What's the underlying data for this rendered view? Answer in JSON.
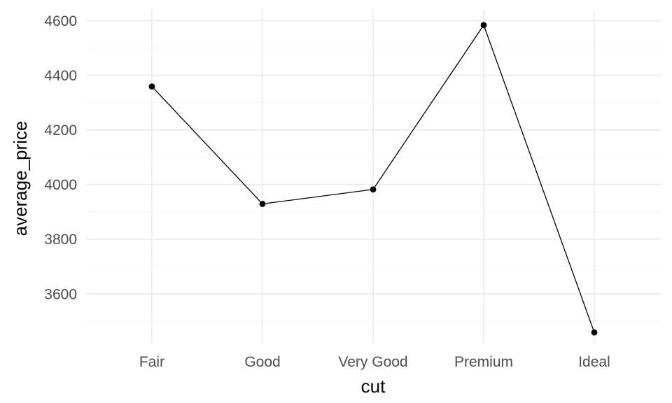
{
  "chart_data": {
    "type": "line",
    "categories": [
      "Fair",
      "Good",
      "Very Good",
      "Premium",
      "Ideal"
    ],
    "values": [
      4359,
      3929,
      3982,
      4584,
      3458
    ],
    "xlabel": "cut",
    "ylabel": "average_price",
    "ylim": [
      3420,
      4640
    ],
    "yticks": [
      3600,
      3800,
      4000,
      4200,
      4400,
      4600
    ],
    "ytick_labels": [
      "3600",
      "3800",
      "4000",
      "4200",
      "4400",
      "4600"
    ],
    "grid": true,
    "legend": false,
    "colors": {
      "line": "#000000",
      "point": "#000000",
      "grid": "#ebebeb",
      "tick_text": "#4d4d4d"
    }
  }
}
